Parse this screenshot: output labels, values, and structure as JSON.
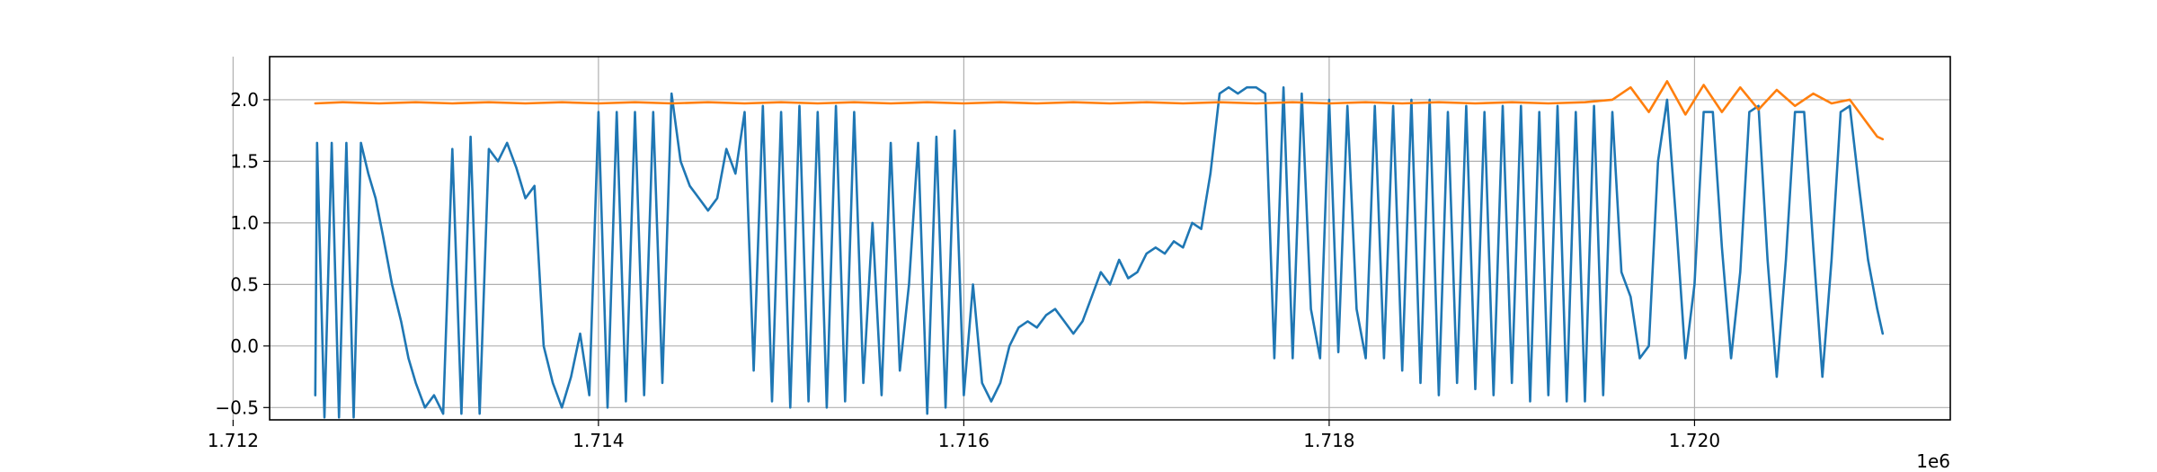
{
  "chart_data": {
    "type": "line",
    "title": "",
    "xlabel": "",
    "ylabel": "",
    "x_offset_label": "1e6",
    "xlim": [
      1.7122,
      1.7214
    ],
    "ylim": [
      -0.6,
      2.35
    ],
    "grid": true,
    "x_ticks": [
      {
        "value": 1.712,
        "label": "1.712"
      },
      {
        "value": 1.714,
        "label": "1.714"
      },
      {
        "value": 1.716,
        "label": "1.716"
      },
      {
        "value": 1.718,
        "label": "1.718"
      },
      {
        "value": 1.72,
        "label": "1.720"
      }
    ],
    "y_ticks": [
      {
        "value": -0.5,
        "label": "−0.5"
      },
      {
        "value": 0.0,
        "label": "0.0"
      },
      {
        "value": 0.5,
        "label": "0.5"
      },
      {
        "value": 1.0,
        "label": "1.0"
      },
      {
        "value": 1.5,
        "label": "1.5"
      },
      {
        "value": 2.0,
        "label": "2.0"
      }
    ],
    "series": [
      {
        "color": "#1f77b4",
        "x": [
          1.71245,
          1.71246,
          1.7125,
          1.71254,
          1.71258,
          1.71262,
          1.71266,
          1.7127,
          1.71274,
          1.71278,
          1.71282,
          1.71287,
          1.71292,
          1.71296,
          1.713,
          1.71305,
          1.7131,
          1.71315,
          1.7132,
          1.71325,
          1.7133,
          1.71335,
          1.7134,
          1.71345,
          1.7135,
          1.71355,
          1.7136,
          1.71365,
          1.7137,
          1.71375,
          1.7138,
          1.71385,
          1.7139,
          1.71395,
          1.714,
          1.71405,
          1.7141,
          1.71415,
          1.7142,
          1.71425,
          1.7143,
          1.71435,
          1.7144,
          1.71445,
          1.7145,
          1.71455,
          1.7146,
          1.71465,
          1.7147,
          1.71475,
          1.7148,
          1.71485,
          1.7149,
          1.71495,
          1.715,
          1.71505,
          1.7151,
          1.71515,
          1.7152,
          1.71525,
          1.7153,
          1.71535,
          1.7154,
          1.71545,
          1.7155,
          1.71555,
          1.7156,
          1.71565,
          1.7157,
          1.71575,
          1.7158,
          1.71585,
          1.7159,
          1.71595,
          1.716,
          1.71605,
          1.7161,
          1.71615,
          1.7162,
          1.71625,
          1.7163,
          1.71635,
          1.7164,
          1.71645,
          1.7165,
          1.71655,
          1.7166,
          1.71665,
          1.7167,
          1.71675,
          1.7168,
          1.71685,
          1.7169,
          1.71695,
          1.717,
          1.71705,
          1.7171,
          1.71715,
          1.7172,
          1.71725,
          1.7173,
          1.71735,
          1.7174,
          1.71745,
          1.7175,
          1.71755,
          1.7176,
          1.71765,
          1.7177,
          1.71775,
          1.7178,
          1.71785,
          1.7179,
          1.71795,
          1.718,
          1.71805,
          1.7181,
          1.71815,
          1.7182,
          1.71825,
          1.7183,
          1.71835,
          1.7184,
          1.71845,
          1.7185,
          1.71855,
          1.7186,
          1.71865,
          1.7187,
          1.71875,
          1.7188,
          1.71885,
          1.7189,
          1.71895,
          1.719,
          1.71905,
          1.7191,
          1.71915,
          1.7192,
          1.71925,
          1.7193,
          1.71935,
          1.7194,
          1.71945,
          1.7195,
          1.71955,
          1.7196,
          1.71965,
          1.7197,
          1.71975,
          1.7198,
          1.71985,
          1.7199,
          1.71995,
          1.72,
          1.72005,
          1.7201,
          1.72015,
          1.7202,
          1.72025,
          1.7203,
          1.72035,
          1.7204,
          1.72045,
          1.7205,
          1.72055,
          1.7206,
          1.72065,
          1.7207,
          1.72075,
          1.7208,
          1.72085,
          1.7209,
          1.72095,
          1.721,
          1.72103
        ],
        "y": [
          -0.4,
          1.65,
          -0.58,
          1.65,
          -0.58,
          1.65,
          -0.58,
          1.65,
          1.4,
          1.2,
          0.9,
          0.5,
          0.2,
          -0.1,
          -0.3,
          -0.5,
          -0.4,
          -0.55,
          1.6,
          -0.55,
          1.7,
          -0.55,
          1.6,
          1.5,
          1.65,
          1.45,
          1.2,
          1.3,
          0.0,
          -0.3,
          -0.5,
          -0.25,
          0.1,
          -0.4,
          1.9,
          -0.5,
          1.9,
          -0.45,
          1.9,
          -0.4,
          1.9,
          -0.3,
          2.05,
          1.5,
          1.3,
          1.2,
          1.1,
          1.2,
          1.6,
          1.4,
          1.9,
          -0.2,
          1.95,
          -0.45,
          1.9,
          -0.5,
          1.95,
          -0.45,
          1.9,
          -0.5,
          1.95,
          -0.45,
          1.9,
          -0.3,
          1.0,
          -0.4,
          1.65,
          -0.2,
          0.5,
          1.65,
          -0.55,
          1.7,
          -0.5,
          1.75,
          -0.4,
          0.5,
          -0.3,
          -0.45,
          -0.3,
          0.0,
          0.15,
          0.2,
          0.15,
          0.25,
          0.3,
          0.2,
          0.1,
          0.2,
          0.4,
          0.6,
          0.5,
          0.7,
          0.55,
          0.6,
          0.75,
          0.8,
          0.75,
          0.85,
          0.8,
          1.0,
          0.95,
          1.4,
          2.05,
          2.1,
          2.05,
          2.1,
          2.1,
          2.05,
          -0.1,
          2.1,
          -0.1,
          2.05,
          0.3,
          -0.1,
          2.0,
          -0.05,
          1.95,
          0.3,
          -0.1,
          1.95,
          -0.1,
          1.95,
          -0.2,
          2.0,
          -0.3,
          2.0,
          -0.4,
          1.9,
          -0.3,
          1.95,
          -0.35,
          1.9,
          -0.4,
          1.95,
          -0.3,
          1.95,
          -0.45,
          1.9,
          -0.4,
          1.95,
          -0.45,
          1.9,
          -0.45,
          1.95,
          -0.4,
          1.9,
          0.6,
          0.4,
          -0.1,
          0.0,
          1.5,
          2.0,
          1.0,
          -0.1,
          0.5,
          1.9,
          1.9,
          0.8,
          -0.1,
          0.6,
          1.9,
          1.95,
          0.7,
          -0.25,
          0.7,
          1.9,
          1.9,
          0.8,
          -0.25,
          0.7,
          1.9,
          1.95,
          1.3,
          0.7,
          0.3,
          0.1
        ]
      },
      {
        "color": "#ff7f0e",
        "x": [
          1.71245,
          1.7126,
          1.7128,
          1.713,
          1.7132,
          1.7134,
          1.7136,
          1.7138,
          1.714,
          1.7142,
          1.7144,
          1.7146,
          1.7148,
          1.715,
          1.7152,
          1.7154,
          1.7156,
          1.7158,
          1.716,
          1.7162,
          1.7164,
          1.7166,
          1.7168,
          1.717,
          1.7172,
          1.7174,
          1.7176,
          1.7178,
          1.718,
          1.7182,
          1.7184,
          1.7186,
          1.7188,
          1.719,
          1.7192,
          1.7194,
          1.71955,
          1.71965,
          1.71975,
          1.71985,
          1.71995,
          1.72005,
          1.72015,
          1.72025,
          1.72035,
          1.72045,
          1.72055,
          1.72065,
          1.72075,
          1.72085,
          1.7209,
          1.72095,
          1.721,
          1.72103
        ],
        "y": [
          1.97,
          1.98,
          1.97,
          1.98,
          1.97,
          1.98,
          1.97,
          1.98,
          1.97,
          1.98,
          1.97,
          1.98,
          1.97,
          1.98,
          1.97,
          1.98,
          1.97,
          1.98,
          1.97,
          1.98,
          1.97,
          1.98,
          1.97,
          1.98,
          1.97,
          1.98,
          1.97,
          1.98,
          1.97,
          1.98,
          1.97,
          1.98,
          1.97,
          1.98,
          1.97,
          1.98,
          2.0,
          2.1,
          1.9,
          2.15,
          1.88,
          2.12,
          1.9,
          2.1,
          1.92,
          2.08,
          1.95,
          2.05,
          1.97,
          2.0,
          1.9,
          1.8,
          1.7,
          1.68
        ]
      }
    ]
  }
}
